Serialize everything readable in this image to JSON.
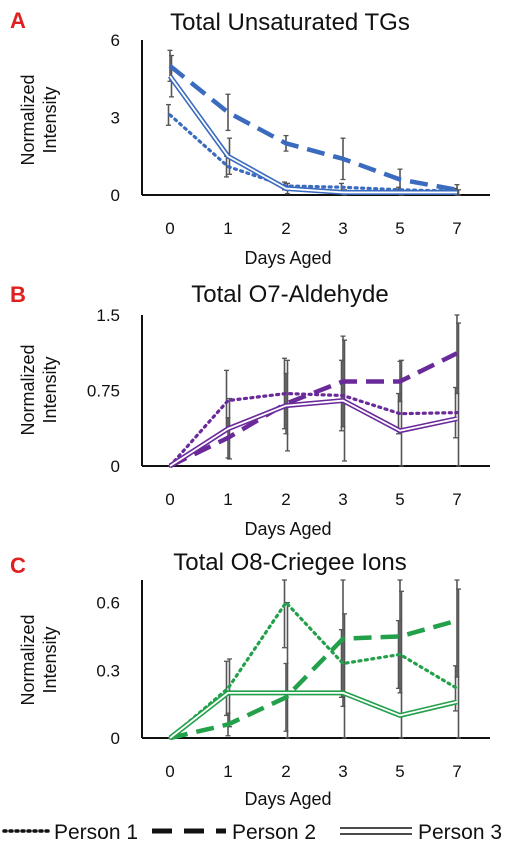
{
  "chart_data": [
    {
      "type": "line",
      "panel_letter": "A",
      "title": "Total Unsaturated TGs",
      "xlabel": "Days Aged",
      "ylabel": "Normalized Intensity",
      "ylabel_lines": [
        "Normalized",
        "Intensity"
      ],
      "categories": [
        "0",
        "1",
        "2",
        "3",
        "5",
        "7"
      ],
      "ylim": [
        0,
        6
      ],
      "yticks": [
        {
          "value": 0,
          "label": "0"
        },
        {
          "value": 3,
          "label": "3"
        },
        {
          "value": 6,
          "label": "6"
        }
      ],
      "color": "#3a6bbf",
      "series": [
        {
          "name": "Person 1",
          "style": "dotted",
          "values": [
            3.1,
            1.1,
            0.35,
            0.3,
            0.2,
            0.15
          ],
          "errors": [
            0.4,
            0.4,
            0.15,
            0.15,
            0.1,
            0.1
          ]
        },
        {
          "name": "Person 2",
          "style": "dashed",
          "values": [
            5.0,
            3.2,
            2.0,
            1.4,
            0.6,
            0.2
          ],
          "errors": [
            0.6,
            0.7,
            0.3,
            0.8,
            0.4,
            0.2
          ]
        },
        {
          "name": "Person 3",
          "style": "double",
          "values": [
            4.6,
            1.5,
            0.25,
            0.1,
            0.1,
            0.1
          ],
          "errors": [
            0.8,
            0.7,
            0.2,
            0.1,
            0.1,
            0.1
          ]
        }
      ]
    },
    {
      "type": "line",
      "panel_letter": "B",
      "title": "Total O7-Aldehyde",
      "xlabel": "Days Aged",
      "ylabel": "Normalized Intensity",
      "ylabel_lines": [
        "Normalized",
        "Intensity"
      ],
      "categories": [
        "0",
        "1",
        "2",
        "3",
        "5",
        "7"
      ],
      "ylim": [
        0,
        1.5
      ],
      "yticks": [
        {
          "value": 0,
          "label": "0"
        },
        {
          "value": 0.75,
          "label": "0.75"
        },
        {
          "value": 1.5,
          "label": "1.5"
        }
      ],
      "color": "#6a2a9a",
      "series": [
        {
          "name": "Person 1",
          "style": "dotted",
          "values": [
            0,
            0.65,
            0.72,
            0.7,
            0.52,
            0.53
          ],
          "errors": [
            0,
            0.3,
            0.35,
            0.35,
            0.2,
            0.25
          ]
        },
        {
          "name": "Person 2",
          "style": "dashed",
          "values": [
            0,
            0.28,
            0.62,
            0.84,
            0.84,
            1.12
          ],
          "errors": [
            0,
            0.2,
            0.3,
            0.45,
            0.2,
            0.4
          ]
        },
        {
          "name": "Person 3",
          "style": "double",
          "values": [
            0,
            0.37,
            0.6,
            0.65,
            0.35,
            0.47
          ],
          "errors": [
            0,
            0.3,
            0.45,
            0.6,
            0.7,
            0.95
          ]
        }
      ]
    },
    {
      "type": "line",
      "panel_letter": "C",
      "title": "Total O8-Criegee Ions",
      "xlabel": "Days Aged",
      "ylabel": "Normalized Intensity",
      "ylabel_lines": [
        "Normalized",
        "Intensity"
      ],
      "categories": [
        "0",
        "1",
        "2",
        "3",
        "5",
        "7"
      ],
      "ylim": [
        0,
        0.7
      ],
      "yticks": [
        {
          "value": 0,
          "label": "0"
        },
        {
          "value": 0.3,
          "label": "0.3"
        },
        {
          "value": 0.6,
          "label": "0.6"
        }
      ],
      "color": "#22a04a",
      "series": [
        {
          "name": "Person 1",
          "style": "dotted",
          "values": [
            0,
            0.22,
            0.6,
            0.33,
            0.37,
            0.22
          ],
          "errors": [
            0,
            0.12,
            0.2,
            0.15,
            0.15,
            0.1
          ]
        },
        {
          "name": "Person 2",
          "style": "dashed",
          "values": [
            0,
            0.06,
            0.18,
            0.44,
            0.45,
            0.52
          ],
          "errors": [
            0,
            0.05,
            0.15,
            0.3,
            0.25,
            0.25
          ]
        },
        {
          "name": "Person 3",
          "style": "double",
          "values": [
            0,
            0.2,
            0.2,
            0.2,
            0.1,
            0.16
          ],
          "errors": [
            0,
            0.15,
            0.4,
            0.35,
            0.55,
            0.5
          ]
        }
      ]
    }
  ],
  "legend": {
    "placement": "bottom",
    "items": [
      {
        "label": "Person 1",
        "style": "dotted"
      },
      {
        "label": "Person 2",
        "style": "dashed"
      },
      {
        "label": "Person 3",
        "style": "double"
      }
    ]
  }
}
